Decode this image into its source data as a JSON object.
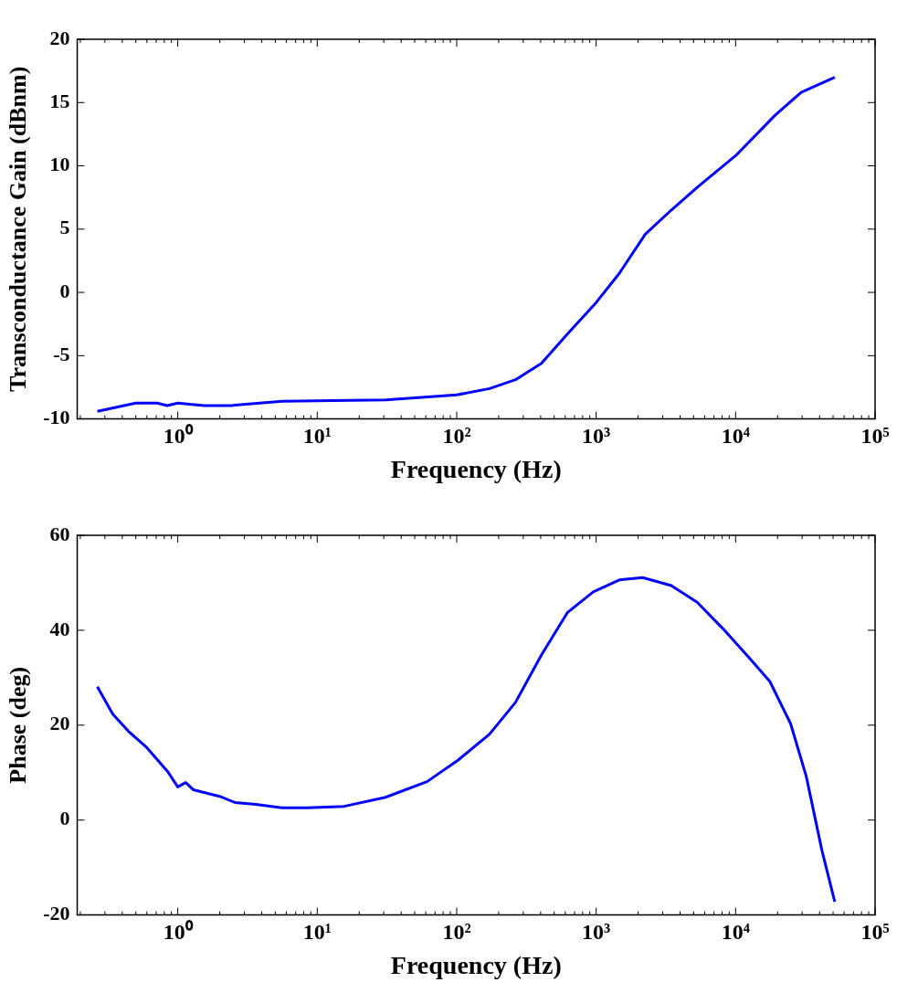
{
  "chart_data": [
    {
      "type": "line",
      "xlabel": "Frequency (Hz)",
      "ylabel": "Transconductance Gain (dBnm)",
      "log": "x",
      "marker": "none",
      "line_style": "solid",
      "xlim": [
        0.19,
        100000
      ],
      "ylim": [
        -10,
        20
      ],
      "yticks": [
        -10,
        -5,
        0,
        5,
        10,
        15,
        20
      ],
      "xticks": [
        {
          "value": 0.2,
          "label": null
        },
        {
          "value": 0.3,
          "label": null
        },
        {
          "value": 0.4,
          "label": null
        },
        {
          "value": 0.5,
          "label": null
        },
        {
          "value": 0.6,
          "label": null
        },
        {
          "value": 0.7,
          "label": null
        },
        {
          "value": 0.8,
          "label": null
        },
        {
          "value": 0.9,
          "label": null
        },
        {
          "value": 1,
          "label": "10⁰"
        },
        {
          "value": 2,
          "label": null
        },
        {
          "value": 3,
          "label": null
        },
        {
          "value": 4,
          "label": null
        },
        {
          "value": 5,
          "label": null
        },
        {
          "value": 6,
          "label": null
        },
        {
          "value": 7,
          "label": null
        },
        {
          "value": 8,
          "label": null
        },
        {
          "value": 9,
          "label": null
        },
        {
          "value": 10,
          "label": "10¹"
        },
        {
          "value": 20,
          "label": null
        },
        {
          "value": 30,
          "label": null
        },
        {
          "value": 40,
          "label": null
        },
        {
          "value": 50,
          "label": null
        },
        {
          "value": 60,
          "label": null
        },
        {
          "value": 70,
          "label": null
        },
        {
          "value": 80,
          "label": null
        },
        {
          "value": 90,
          "label": null
        },
        {
          "value": 100,
          "label": "10²"
        },
        {
          "value": 200,
          "label": null
        },
        {
          "value": 300,
          "label": null
        },
        {
          "value": 400,
          "label": null
        },
        {
          "value": 500,
          "label": null
        },
        {
          "value": 600,
          "label": null
        },
        {
          "value": 700,
          "label": null
        },
        {
          "value": 800,
          "label": null
        },
        {
          "value": 900,
          "label": null
        },
        {
          "value": 1000,
          "label": "10³"
        },
        {
          "value": 2000,
          "label": null
        },
        {
          "value": 3000,
          "label": null
        },
        {
          "value": 4000,
          "label": null
        },
        {
          "value": 5000,
          "label": null
        },
        {
          "value": 6000,
          "label": null
        },
        {
          "value": 7000,
          "label": null
        },
        {
          "value": 8000,
          "label": null
        },
        {
          "value": 9000,
          "label": null
        },
        {
          "value": 10000,
          "label": "10⁴"
        },
        {
          "value": 20000,
          "label": null
        },
        {
          "value": 30000,
          "label": null
        },
        {
          "value": 40000,
          "label": null
        },
        {
          "value": 50000,
          "label": null
        },
        {
          "value": 60000,
          "label": null
        },
        {
          "value": 70000,
          "label": null
        },
        {
          "value": 80000,
          "label": null
        },
        {
          "value": 90000,
          "label": null
        },
        {
          "value": 100000,
          "label": "10⁵"
        }
      ],
      "series": [
        {
          "color": "#0000ff",
          "x": [
            0.265,
            0.5,
            0.71,
            0.84,
            1,
            1.54,
            2.36,
            5.6,
            31,
            100,
            172,
            264,
            405,
            621,
            1000,
            1465,
            2250,
            3455,
            5300,
            10000,
            19200,
            29500,
            51400
          ],
          "values": [
            -9.4,
            -8.75,
            -8.75,
            -8.95,
            -8.75,
            -8.95,
            -8.95,
            -8.6,
            -8.5,
            -8.1,
            -7.6,
            -6.9,
            -5.6,
            -3.3,
            -0.8,
            1.5,
            4.6,
            6.5,
            8.3,
            10.8,
            14.0,
            15.8,
            17.0
          ]
        }
      ]
    },
    {
      "type": "line",
      "xlabel": "Frequency (Hz)",
      "ylabel": "Phase (deg)",
      "log": "x",
      "marker": "none",
      "line_style": "solid",
      "xlim": [
        0.19,
        100000
      ],
      "ylim": [
        -20,
        60
      ],
      "yticks": [
        -20,
        0,
        20,
        40,
        60
      ],
      "xticks": [
        {
          "value": 0.2,
          "label": null
        },
        {
          "value": 0.3,
          "label": null
        },
        {
          "value": 0.4,
          "label": null
        },
        {
          "value": 0.5,
          "label": null
        },
        {
          "value": 0.6,
          "label": null
        },
        {
          "value": 0.7,
          "label": null
        },
        {
          "value": 0.8,
          "label": null
        },
        {
          "value": 0.9,
          "label": null
        },
        {
          "value": 1,
          "label": "10⁰"
        },
        {
          "value": 2,
          "label": null
        },
        {
          "value": 3,
          "label": null
        },
        {
          "value": 4,
          "label": null
        },
        {
          "value": 5,
          "label": null
        },
        {
          "value": 6,
          "label": null
        },
        {
          "value": 7,
          "label": null
        },
        {
          "value": 8,
          "label": null
        },
        {
          "value": 9,
          "label": null
        },
        {
          "value": 10,
          "label": "10¹"
        },
        {
          "value": 20,
          "label": null
        },
        {
          "value": 30,
          "label": null
        },
        {
          "value": 40,
          "label": null
        },
        {
          "value": 50,
          "label": null
        },
        {
          "value": 60,
          "label": null
        },
        {
          "value": 70,
          "label": null
        },
        {
          "value": 80,
          "label": null
        },
        {
          "value": 90,
          "label": null
        },
        {
          "value": 100,
          "label": "10²"
        },
        {
          "value": 200,
          "label": null
        },
        {
          "value": 300,
          "label": null
        },
        {
          "value": 400,
          "label": null
        },
        {
          "value": 500,
          "label": null
        },
        {
          "value": 600,
          "label": null
        },
        {
          "value": 700,
          "label": null
        },
        {
          "value": 800,
          "label": null
        },
        {
          "value": 900,
          "label": null
        },
        {
          "value": 1000,
          "label": "10³"
        },
        {
          "value": 2000,
          "label": null
        },
        {
          "value": 3000,
          "label": null
        },
        {
          "value": 4000,
          "label": null
        },
        {
          "value": 5000,
          "label": null
        },
        {
          "value": 6000,
          "label": null
        },
        {
          "value": 7000,
          "label": null
        },
        {
          "value": 8000,
          "label": null
        },
        {
          "value": 9000,
          "label": null
        },
        {
          "value": 10000,
          "label": "10⁴"
        },
        {
          "value": 20000,
          "label": null
        },
        {
          "value": 30000,
          "label": null
        },
        {
          "value": 40000,
          "label": null
        },
        {
          "value": 50000,
          "label": null
        },
        {
          "value": 60000,
          "label": null
        },
        {
          "value": 70000,
          "label": null
        },
        {
          "value": 80000,
          "label": null
        },
        {
          "value": 90000,
          "label": null
        },
        {
          "value": 100000,
          "label": "10⁵"
        }
      ],
      "series": [
        {
          "color": "#0000ff",
          "x": [
            0.265,
            0.342,
            0.443,
            0.598,
            0.842,
            1,
            1.14,
            1.29,
            1.99,
            2.57,
            3.62,
            5.56,
            8.53,
            15.6,
            30.9,
            61.3,
            102,
            172,
            264,
            405,
            621,
            954,
            1465,
            2154,
            3455,
            5300,
            8130,
            12500,
            17600,
            24800,
            32100,
            41500,
            51400
          ],
          "values": [
            28.1,
            22.3,
            18.7,
            15.3,
            10.3,
            7.0,
            7.9,
            6.4,
            5.0,
            3.7,
            3.3,
            2.6,
            2.6,
            2.9,
            4.8,
            8.1,
            12.6,
            18.1,
            24.8,
            34.8,
            43.7,
            48.1,
            50.6,
            51.1,
            49.4,
            45.9,
            40.3,
            34.2,
            29.2,
            20.3,
            9.2,
            -6.3,
            -17.2
          ]
        }
      ]
    }
  ]
}
